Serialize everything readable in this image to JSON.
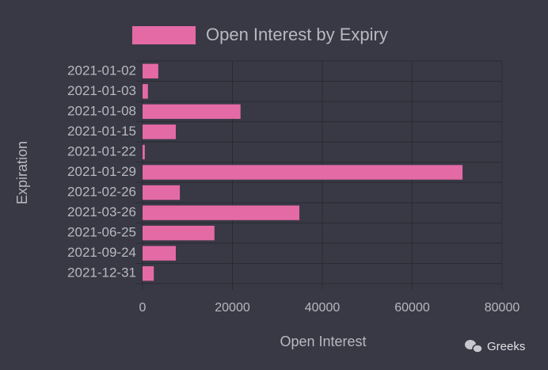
{
  "chart_data": {
    "type": "bar",
    "orientation": "horizontal",
    "categories": [
      "2021-01-02",
      "2021-01-03",
      "2021-01-08",
      "2021-01-15",
      "2021-01-22",
      "2021-01-29",
      "2021-02-26",
      "2021-03-26",
      "2021-06-25",
      "2021-09-24",
      "2021-12-31"
    ],
    "series": [
      {
        "name": "Open Interest by Expiry",
        "color": "#e46aa6",
        "values": [
          3500,
          1200,
          21800,
          7400,
          500,
          71200,
          8300,
          34900,
          16000,
          7400,
          2500
        ]
      }
    ],
    "x_label": "Open Interest",
    "y_label": "Expiration",
    "xlim": [
      0,
      80000
    ],
    "xticks": [
      0,
      20000,
      40000,
      60000,
      80000
    ],
    "grid": true,
    "legend": "top"
  },
  "watermark": {
    "text": "Greeks"
  }
}
